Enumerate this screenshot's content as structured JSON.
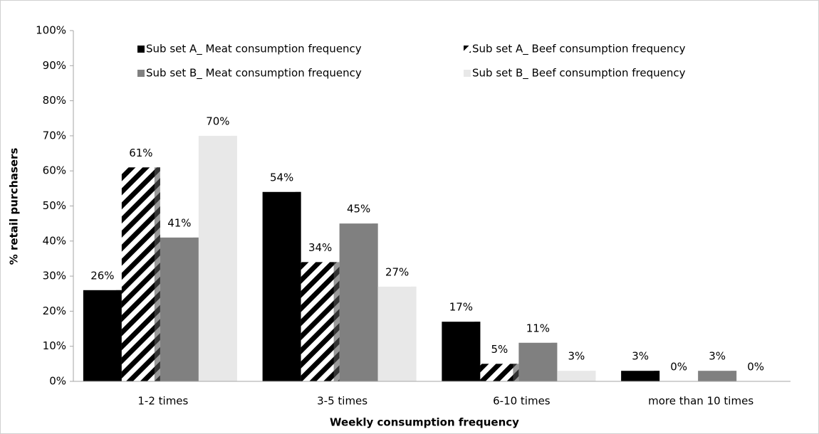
{
  "chart_data": {
    "type": "bar",
    "categories": [
      "1-2 times",
      "3-5 times",
      "6-10 times",
      "more than 10 times"
    ],
    "series": [
      {
        "name": "Sub set A_ Meat consumption frequency",
        "color": "#000000",
        "values": [
          26,
          54,
          17,
          3
        ],
        "value_labels": [
          "26%",
          "54%",
          "17%",
          "3%"
        ]
      },
      {
        "name": "Sub set A_ Beef consumption frequency",
        "color": "#000000",
        "pattern": "diagonal-hatch",
        "values": [
          61,
          34,
          5,
          0
        ],
        "value_labels": [
          "61%",
          "34%",
          "5%",
          "0%"
        ]
      },
      {
        "name": "Sub set B_ Meat consumption frequency",
        "color": "#808080",
        "values": [
          41,
          45,
          11,
          3
        ],
        "value_labels": [
          "41%",
          "45%",
          "11%",
          "3%"
        ]
      },
      {
        "name": "Sub set B_ Beef consumption frequency",
        "color": "#e8e8e8",
        "values": [
          70,
          27,
          3,
          0
        ],
        "value_labels": [
          "70%",
          "27%",
          "3%",
          "0%"
        ]
      }
    ],
    "xlabel": "Weekly consumption frequency",
    "ylabel": "% retail purchasers",
    "ylim": [
      0,
      100
    ],
    "yticks": [
      {
        "value": 0,
        "label": "0%"
      },
      {
        "value": 10,
        "label": "10%"
      },
      {
        "value": 20,
        "label": "20%"
      },
      {
        "value": 30,
        "label": "30%"
      },
      {
        "value": 40,
        "label": "40%"
      },
      {
        "value": 50,
        "label": "50%"
      },
      {
        "value": 60,
        "label": "60%"
      },
      {
        "value": 70,
        "label": "70%"
      },
      {
        "value": 80,
        "label": "80%"
      },
      {
        "value": 90,
        "label": "90%"
      },
      {
        "value": 100,
        "label": "100%"
      }
    ],
    "grid": false,
    "legend": "top"
  }
}
